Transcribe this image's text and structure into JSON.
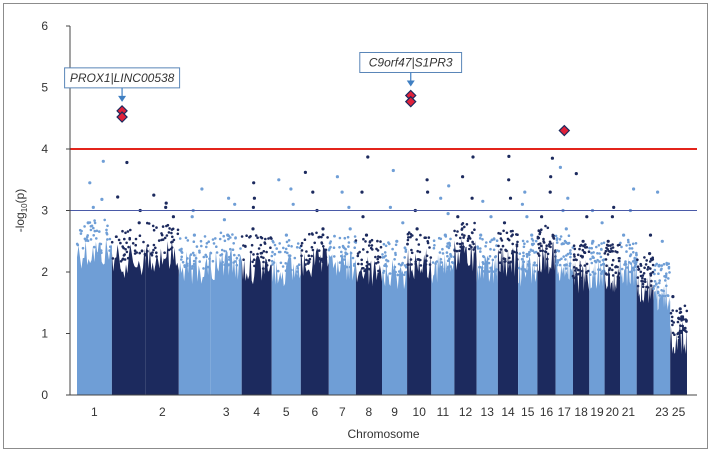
{
  "chart_data": {
    "type": "scatter",
    "title": "",
    "xlabel": "Chromosome",
    "ylabel_main": "-log",
    "ylabel_sub": "10",
    "ylabel_end": "(p)",
    "ylim": [
      0,
      6
    ],
    "yticks": [
      0,
      1,
      2,
      3,
      4,
      5,
      6
    ],
    "grid": false,
    "colors": {
      "light": "#6f9ed6",
      "dark": "#1c2a5e",
      "significance_line": "#e3241b",
      "suggestive_line": "#4a5aa8",
      "highlight_fill": "#e0213a",
      "highlight_stroke": "#1c2a5e",
      "callout_border": "#5a86b8",
      "callout_arrow": "#3f7fc2"
    },
    "threshold_lines": [
      {
        "name": "significance",
        "y": 4
      },
      {
        "name": "suggestive",
        "y": 3
      }
    ],
    "chromosomes": [
      {
        "label": "1",
        "shade": "light",
        "bulk": 2.6,
        "scatter": [
          2.8,
          3.05,
          3.18,
          3.45,
          3.8
        ]
      },
      {
        "label": "",
        "shade": "dark",
        "bulk": 2.45,
        "scatter": [
          2.8,
          3.0,
          3.22,
          3.78
        ]
      },
      {
        "label": "2",
        "shade": "dark",
        "bulk": 2.55,
        "scatter": [
          2.9,
          3.05,
          3.12,
          3.25
        ]
      },
      {
        "label": "",
        "shade": "light",
        "bulk": 2.35,
        "scatter": [
          2.6,
          2.9,
          3.0,
          3.35
        ]
      },
      {
        "label": "3",
        "shade": "light",
        "bulk": 2.4,
        "scatter": [
          2.6,
          2.85,
          3.1,
          3.2
        ]
      },
      {
        "label": "4",
        "shade": "dark",
        "bulk": 2.35,
        "scatter": [
          2.7,
          3.05,
          3.2,
          3.45
        ]
      },
      {
        "label": "5",
        "shade": "light",
        "bulk": 2.3,
        "scatter": [
          2.6,
          3.1,
          3.35,
          3.5
        ]
      },
      {
        "label": "6",
        "shade": "dark",
        "bulk": 2.4,
        "scatter": [
          2.7,
          3.0,
          3.3,
          3.62
        ]
      },
      {
        "label": "7",
        "shade": "light",
        "bulk": 2.35,
        "scatter": [
          2.7,
          3.05,
          3.3,
          3.55
        ]
      },
      {
        "label": "8",
        "shade": "dark",
        "bulk": 2.3,
        "scatter": [
          2.6,
          2.9,
          3.3,
          3.87
        ]
      },
      {
        "label": "9",
        "shade": "light",
        "bulk": 2.25,
        "scatter": [
          2.5,
          2.8,
          3.05,
          3.65
        ]
      },
      {
        "label": "10",
        "shade": "dark",
        "bulk": 2.4,
        "scatter": [
          2.7,
          3.0,
          3.3,
          3.5
        ]
      },
      {
        "label": "11",
        "shade": "light",
        "bulk": 2.35,
        "scatter": [
          2.6,
          2.95,
          3.2,
          3.4
        ]
      },
      {
        "label": "12",
        "shade": "dark",
        "bulk": 2.55,
        "scatter": [
          2.9,
          3.2,
          3.55,
          3.87
        ]
      },
      {
        "label": "13",
        "shade": "light",
        "bulk": 2.3,
        "scatter": [
          2.6,
          2.9,
          3.15
        ]
      },
      {
        "label": "14",
        "shade": "dark",
        "bulk": 2.45,
        "scatter": [
          2.8,
          3.2,
          3.5,
          3.88
        ]
      },
      {
        "label": "15",
        "shade": "light",
        "bulk": 2.3,
        "scatter": [
          2.6,
          2.9,
          3.1,
          3.3
        ]
      },
      {
        "label": "16",
        "shade": "dark",
        "bulk": 2.5,
        "scatter": [
          2.9,
          3.3,
          3.55,
          3.85
        ]
      },
      {
        "label": "17",
        "shade": "light",
        "bulk": 2.35,
        "scatter": [
          2.7,
          3.0,
          3.2,
          3.7
        ]
      },
      {
        "label": "18",
        "shade": "dark",
        "bulk": 2.2,
        "scatter": [
          2.5,
          2.9,
          3.6
        ]
      },
      {
        "label": "19",
        "shade": "light",
        "bulk": 2.25,
        "scatter": [
          2.5,
          2.8,
          3.0
        ]
      },
      {
        "label": "20",
        "shade": "dark",
        "bulk": 2.2,
        "scatter": [
          2.5,
          2.9,
          3.05
        ]
      },
      {
        "label": "21",
        "shade": "light",
        "bulk": 2.3,
        "scatter": [
          2.6,
          3.0,
          3.35
        ]
      },
      {
        "label": "",
        "shade": "dark",
        "bulk": 2.0,
        "scatter": [
          2.3,
          2.6
        ]
      },
      {
        "label": "23",
        "shade": "light",
        "bulk": 1.9,
        "scatter": [
          2.1,
          2.5,
          3.3
        ]
      },
      {
        "label": "25",
        "shade": "dark",
        "bulk": 1.2,
        "scatter": [
          1.4,
          1.6
        ]
      }
    ],
    "highlights": [
      {
        "chromosome_index": 1,
        "offset": 0.3,
        "y": 4.62
      },
      {
        "chromosome_index": 1,
        "offset": 0.3,
        "y": 4.52
      },
      {
        "chromosome_index": 11,
        "offset": 0.15,
        "y": 4.87
      },
      {
        "chromosome_index": 11,
        "offset": 0.15,
        "y": 4.77
      },
      {
        "chromosome_index": 18,
        "offset": 0.5,
        "y": 4.3
      }
    ],
    "annotations": [
      {
        "text": "PROX1|LINC00538",
        "target_chromosome_index": 1,
        "target_offset": 0.3,
        "target_y": 4.62
      },
      {
        "text": "C9orf47|S1PR3",
        "target_chromosome_index": 11,
        "target_offset": 0.15,
        "target_y": 4.87
      }
    ]
  }
}
